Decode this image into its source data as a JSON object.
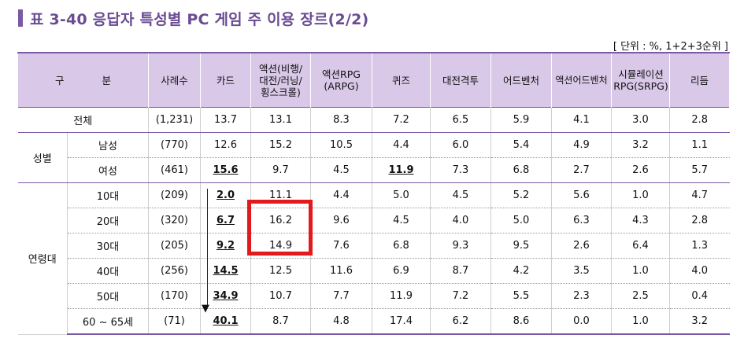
{
  "title": {
    "text": "표 3-40  응답자 특성별 PC 게임 주 이용 장르(2/2)"
  },
  "unit": "[ 단위 : %, 1+2+3순위 ]",
  "headers": {
    "gubun_1": "구",
    "gubun_2": "분",
    "cases": "사례수",
    "col1": "카드",
    "col2": "액션(비행/ 대전/러닝/ 횡스크롤)",
    "col3": "액션RPG (ARPG)",
    "col4": "퀴즈",
    "col5": "대전격투",
    "col6": "어드벤처",
    "col7": "액션어드벤처",
    "col8": "시뮬레이션 RPG(SRPG)",
    "col9": "리듬"
  },
  "groups": {
    "gender": "성별",
    "age": "연령대"
  },
  "rows": [
    {
      "label": "전체",
      "n": "(1,231)",
      "v": [
        "13.7",
        "13.1",
        "8.3",
        "7.2",
        "6.5",
        "5.9",
        "4.1",
        "3.0",
        "2.8"
      ]
    },
    {
      "label": "남성",
      "n": "(770)",
      "v": [
        "12.6",
        "15.2",
        "10.5",
        "4.4",
        "6.0",
        "5.4",
        "4.9",
        "3.2",
        "1.1"
      ]
    },
    {
      "label": "여성",
      "n": "(461)",
      "v": [
        "15.6",
        "9.7",
        "4.5",
        "11.9",
        "7.3",
        "6.8",
        "2.7",
        "2.6",
        "5.7"
      ]
    },
    {
      "label": "10대",
      "n": "(209)",
      "v": [
        "2.0",
        "11.1",
        "4.4",
        "5.0",
        "4.5",
        "5.2",
        "5.6",
        "1.0",
        "4.7"
      ]
    },
    {
      "label": "20대",
      "n": "(320)",
      "v": [
        "6.7",
        "16.2",
        "9.6",
        "4.5",
        "4.0",
        "5.0",
        "6.3",
        "4.3",
        "2.8"
      ]
    },
    {
      "label": "30대",
      "n": "(205)",
      "v": [
        "9.2",
        "14.9",
        "7.6",
        "6.8",
        "9.3",
        "9.5",
        "2.6",
        "6.4",
        "1.3"
      ]
    },
    {
      "label": "40대",
      "n": "(256)",
      "v": [
        "14.5",
        "12.5",
        "11.6",
        "6.9",
        "8.7",
        "4.2",
        "3.5",
        "1.0",
        "4.0"
      ]
    },
    {
      "label": "50대",
      "n": "(170)",
      "v": [
        "34.9",
        "10.7",
        "7.7",
        "11.9",
        "7.2",
        "5.5",
        "2.3",
        "2.5",
        "0.4"
      ]
    },
    {
      "label": "60 ~ 65세",
      "n": "(71)",
      "v": [
        "40.1",
        "8.7",
        "4.8",
        "17.4",
        "6.2",
        "8.6",
        "0.0",
        "1.0",
        "3.2"
      ]
    }
  ],
  "arrow_glyph": "▼"
}
